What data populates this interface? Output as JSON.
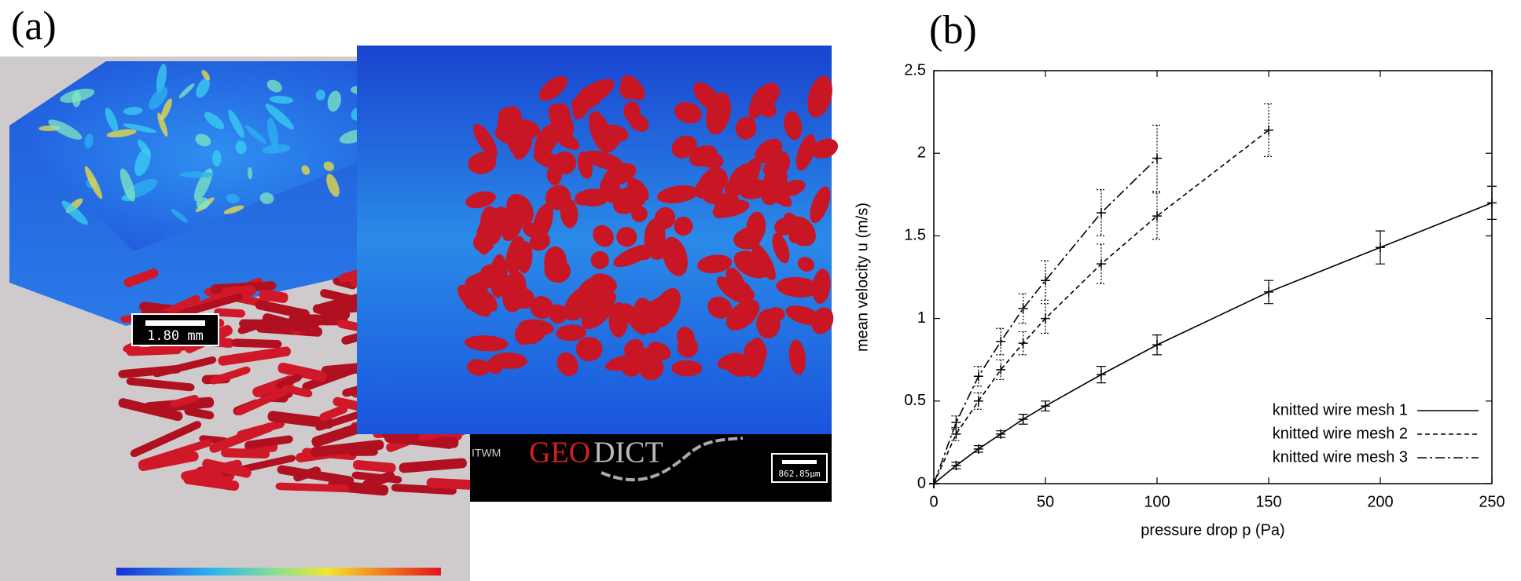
{
  "panel_a": {
    "label": "(a)",
    "scale_bar_left": "1.80 mm",
    "scale_bar_right": "862.85µm",
    "logo_geo": "GEO",
    "logo_dict": "DICT",
    "institute": "ITWM"
  },
  "panel_b": {
    "label": "(b)"
  },
  "chart_data": {
    "type": "line",
    "x_label": "pressure drop p (Pa)",
    "y_label": "mean velocity u (m/s)",
    "xlim": [
      0,
      250
    ],
    "xticks": [
      0,
      50,
      100,
      150,
      200,
      250
    ],
    "ylim": [
      0,
      2.5
    ],
    "yticks": [
      0,
      0.5,
      1,
      1.5,
      2,
      2.5
    ],
    "grid": false,
    "legend": "lower right",
    "series": [
      {
        "name": "knitted wire mesh 1",
        "color": "#000000",
        "linestyle": "solid",
        "x": [
          0,
          10,
          20,
          30,
          40,
          50,
          75,
          100,
          150,
          200,
          250
        ],
        "values": [
          0,
          0.11,
          0.21,
          0.3,
          0.39,
          0.47,
          0.66,
          0.84,
          1.16,
          1.43,
          1.7
        ],
        "errors": [
          0,
          0.02,
          0.02,
          0.02,
          0.03,
          0.03,
          0.05,
          0.06,
          0.07,
          0.1,
          0.1
        ]
      },
      {
        "name": "knitted wire mesh 2",
        "color": "#000000",
        "linestyle": "dashed",
        "x": [
          0,
          10,
          20,
          30,
          40,
          50,
          75,
          100,
          150
        ],
        "values": [
          0,
          0.3,
          0.5,
          0.69,
          0.85,
          1.0,
          1.33,
          1.62,
          2.14
        ],
        "errors": [
          0,
          0.04,
          0.05,
          0.06,
          0.07,
          0.09,
          0.12,
          0.14,
          0.16
        ]
      },
      {
        "name": "knitted wire mesh 3",
        "color": "#000000",
        "linestyle": "dashdot",
        "x": [
          0,
          10,
          20,
          30,
          40,
          50,
          75,
          100
        ],
        "values": [
          0,
          0.37,
          0.65,
          0.86,
          1.06,
          1.23,
          1.64,
          1.97
        ],
        "errors": [
          0,
          0.04,
          0.06,
          0.08,
          0.09,
          0.12,
          0.14,
          0.2
        ]
      }
    ]
  }
}
